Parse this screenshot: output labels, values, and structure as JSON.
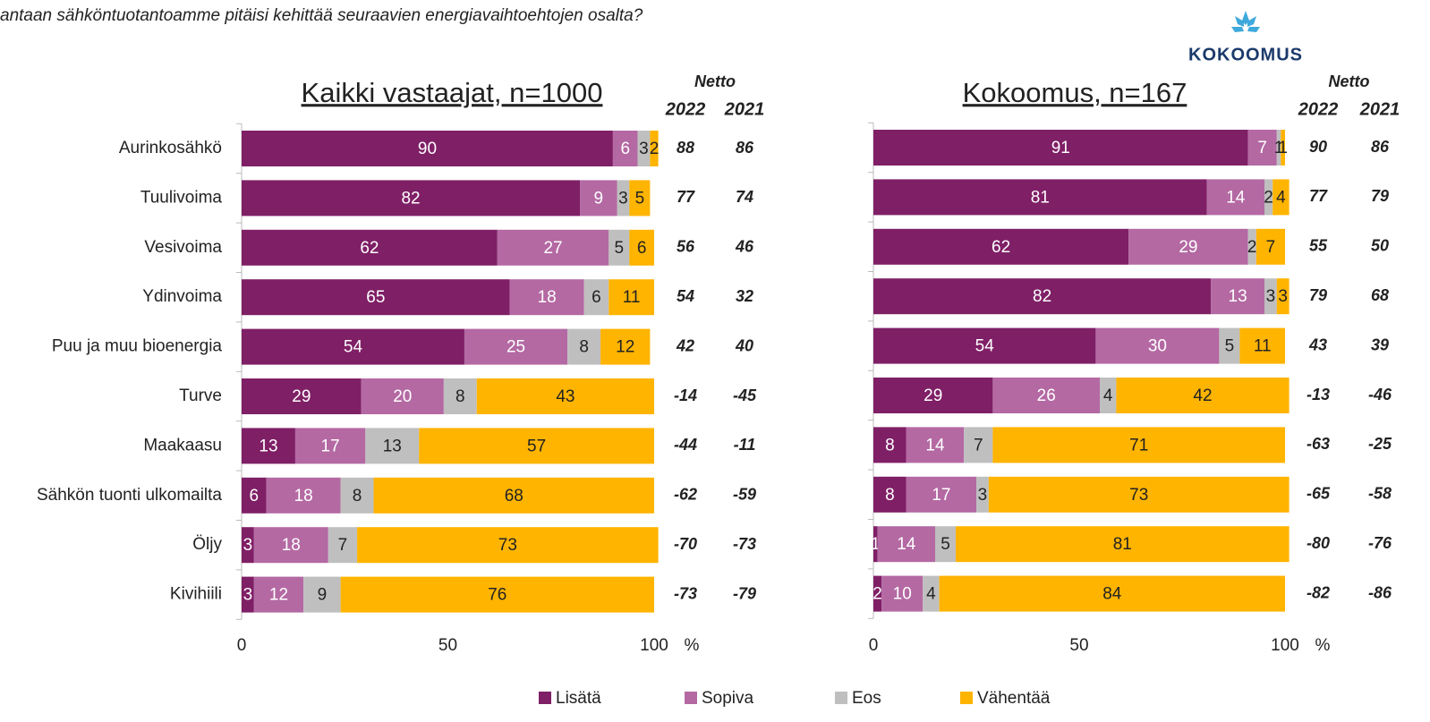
{
  "question": "antaan sähköntuotantoamme pitäisi kehittää seuraavien energiavaihtoehtojen osalta?",
  "logo": "KOKOOMUS",
  "chart_data": [
    {
      "type": "bar",
      "stacked": true,
      "orientation": "horizontal",
      "title": "Kaikki vastaajat, n=1000",
      "categories": [
        "Aurinkosähkö",
        "Tuulivoima",
        "Vesivoima",
        "Ydinvoima",
        "Puu ja muu bioenergia",
        "Turve",
        "Maakaasu",
        "Sähkön tuonti ulkomailta",
        "Öljy",
        "Kivihiili"
      ],
      "series": [
        {
          "name": "Lisätä",
          "color": "#7f1f66",
          "values": [
            90,
            82,
            62,
            65,
            54,
            29,
            13,
            6,
            3,
            3
          ]
        },
        {
          "name": "Sopiva",
          "color": "#b469a3",
          "values": [
            6,
            9,
            27,
            18,
            25,
            20,
            17,
            18,
            18,
            12
          ]
        },
        {
          "name": "Eos",
          "color": "#bfbfbf",
          "values": [
            3,
            3,
            5,
            6,
            8,
            8,
            13,
            8,
            7,
            9
          ]
        },
        {
          "name": "Vähentää",
          "color": "#ffb400",
          "values": [
            2,
            5,
            6,
            11,
            12,
            43,
            57,
            68,
            73,
            76
          ]
        }
      ],
      "xlim": [
        0,
        100
      ],
      "xticks": [
        0,
        50,
        100
      ],
      "unit": "%",
      "net_header": "Netto",
      "net_columns": [
        {
          "name": "2022",
          "values": [
            88,
            77,
            56,
            54,
            42,
            -14,
            -44,
            -62,
            -70,
            -73
          ]
        },
        {
          "name": "2021",
          "values": [
            86,
            74,
            46,
            32,
            40,
            -45,
            -11,
            -59,
            -73,
            -79
          ]
        }
      ]
    },
    {
      "type": "bar",
      "stacked": true,
      "orientation": "horizontal",
      "title": "Kokoomus, n=167",
      "series": [
        {
          "color": "#7f1f66",
          "values": [
            91,
            81,
            62,
            82,
            54,
            29,
            8,
            8,
            1,
            2
          ]
        },
        {
          "color": "#b469a3",
          "values": [
            7,
            14,
            29,
            13,
            30,
            26,
            14,
            17,
            14,
            10
          ]
        },
        {
          "color": "#bfbfbf",
          "values": [
            1,
            2,
            2,
            3,
            5,
            4,
            7,
            3,
            5,
            4
          ]
        },
        {
          "color": "#ffb400",
          "values": [
            1,
            4,
            7,
            3,
            11,
            42,
            71,
            73,
            81,
            84
          ]
        }
      ],
      "xlim": [
        0,
        100
      ],
      "xticks": [
        0,
        50,
        100
      ],
      "unit": "%",
      "net_header": "Netto",
      "net_columns": [
        {
          "name": "2022",
          "values": [
            90,
            77,
            55,
            79,
            43,
            -13,
            -63,
            -65,
            -80,
            -82
          ]
        },
        {
          "name": "2021",
          "values": [
            86,
            79,
            50,
            68,
            39,
            -46,
            -25,
            -58,
            -76,
            -86
          ]
        }
      ]
    }
  ]
}
